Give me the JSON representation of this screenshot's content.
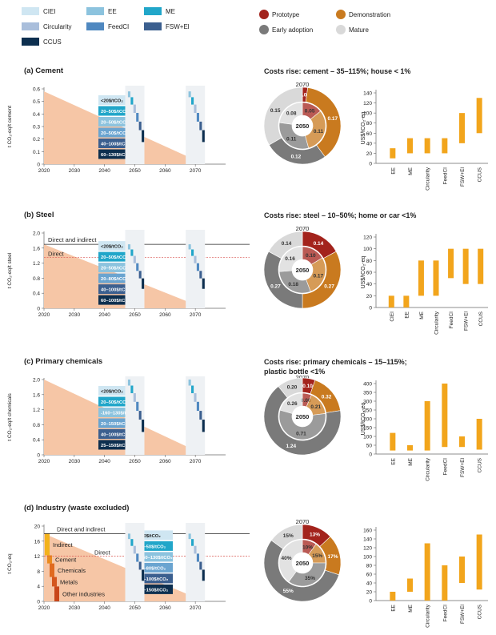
{
  "legend": {
    "items": [
      {
        "label": "CIEI",
        "color": "#cfe6f2"
      },
      {
        "label": "EE",
        "color": "#8cc3de"
      },
      {
        "label": "ME",
        "color": "#21a6c9"
      },
      {
        "label": "Circularity",
        "color": "#a9bedb"
      },
      {
        "label": "FeedCI",
        "color": "#4f88c0"
      },
      {
        "label": "FSW+El",
        "color": "#3b5f8f"
      },
      {
        "label": "CCUS",
        "color": "#0d2f4f"
      }
    ],
    "maturity": [
      {
        "label": "Prototype",
        "color": "#a3231c"
      },
      {
        "label": "Demonstration",
        "color": "#c97a1f"
      },
      {
        "label": "Early adoption",
        "color": "#7a7a7a"
      },
      {
        "label": "Mature",
        "color": "#d9d9d9"
      }
    ]
  },
  "bar_color": "#f2a51c",
  "chart_data": [
    {
      "id": "cement",
      "type": "area",
      "title": "(a) Cement",
      "ylabel": "t CO₂-eq/t cement",
      "yticks": [
        "0",
        "0.1",
        "0.2",
        "0.3",
        "0.4",
        "0.5",
        "0.6"
      ],
      "ylim": [
        0,
        0.6
      ],
      "xticks": [
        "2020",
        "2030",
        "2040",
        "2050",
        "2060",
        "2070"
      ],
      "ytop": 0.58,
      "cost_labels": [
        "<20$/tCO₂",
        "20–50$/tCO₂",
        "20–50$/tCO₂",
        "20–50$/tCO₂",
        "40–100$/tCO₂",
        "60–130$/tCO₂"
      ],
      "costs_title": "Costs rise: cement – 35–115%; house < 1%",
      "donut": {
        "year_outer": "2070",
        "year_inner": "2050",
        "outer": [
          0.01,
          0.17,
          0.12,
          0.15
        ],
        "outer_labels": [
          "0.01",
          "0.17",
          "0.12",
          "0.15"
        ],
        "inner": [
          0.05,
          0.11,
          0.11,
          0.08
        ],
        "inner_labels": [
          "0.05",
          "0.11",
          "0.11",
          "0.08"
        ]
      },
      "bars": {
        "ylabel": "US$/tCO₂-eq",
        "ymax": 140,
        "ytick_step": 20,
        "yticks": [
          "0",
          "20",
          "40",
          "60",
          "80",
          "100",
          "120",
          "140"
        ],
        "categories": [
          "EE",
          "ME",
          "Circularity",
          "FeedCI",
          "FSW+El",
          "CCUS"
        ],
        "ranges": [
          [
            10,
            30
          ],
          [
            20,
            50
          ],
          [
            20,
            50
          ],
          [
            20,
            50
          ],
          [
            40,
            100
          ],
          [
            60,
            130
          ]
        ]
      }
    },
    {
      "id": "steel",
      "type": "area",
      "title": "(b) Steel",
      "ylabel": "t CO₂-eq/t steel",
      "yticks": [
        "0",
        "0.4",
        "0.8",
        "1.2",
        "1.6",
        "2.0"
      ],
      "ylim": [
        0,
        2.0
      ],
      "xticks": [
        "2020",
        "2030",
        "2040",
        "2050",
        "2060",
        "2070"
      ],
      "ytop": 1.7,
      "annot_direct_indirect": "Direct and indirect",
      "annot_direct": "Direct",
      "direct_level": 1.35,
      "cost_labels": [
        "<20$/tCO₂",
        "20–50$/tCO₂",
        "20–50$/tCO₂",
        "20–80$/tCO₂",
        "40–100$/tCO₂",
        "60–100$/tCO₂"
      ],
      "costs_title": "Costs rise: steel – 10–50%; home or car <1%",
      "donut": {
        "year_outer": "2070",
        "year_inner": "2050",
        "outer": [
          0.14,
          0.27,
          0.27,
          0.14
        ],
        "outer_labels": [
          "0.14",
          "0.27",
          "0.27",
          "0.14"
        ],
        "inner": [
          0.1,
          0.17,
          0.18,
          0.16
        ],
        "inner_labels": [
          "0.10",
          "0.17",
          "0.18",
          "0.16"
        ]
      },
      "bars": {
        "ylabel": "US$/tCO₂-eq",
        "ymax": 120,
        "ytick_step": 20,
        "yticks": [
          "0",
          "20",
          "40",
          "60",
          "80",
          "100",
          "120"
        ],
        "categories": [
          "CIEI",
          "EE",
          "ME",
          "Circularity",
          "FeedCI",
          "FSW+El",
          "CCUS"
        ],
        "ranges": [
          [
            0,
            20
          ],
          [
            0,
            20
          ],
          [
            20,
            80
          ],
          [
            20,
            80
          ],
          [
            50,
            100
          ],
          [
            40,
            100
          ],
          [
            40,
            100
          ]
        ]
      }
    },
    {
      "id": "chemicals",
      "type": "area",
      "title": "(c) Primary chemicals",
      "ylabel": "t CO₂-eq/t chemicals",
      "yticks": [
        "0",
        "0.4",
        "0.8",
        "1.2",
        "1.6",
        "2.0"
      ],
      "ylim": [
        0,
        2.0
      ],
      "xticks": [
        "2020",
        "2030",
        "2040",
        "2050",
        "2060",
        "2070"
      ],
      "ytop": 2.0,
      "cost_labels": [
        "<20$/tCO₂",
        "20–50$/tCO₂",
        "-160–130$/tCO₂",
        "20–150$/tCO₂",
        "40–100$/tCO₂",
        "25–150$/tCO₂"
      ],
      "costs_title": "Costs rise: primary chemicals – 15–115%;",
      "costs_title2": "plastic bottle <1%",
      "donut": {
        "year_outer": "2070",
        "year_inner": "2050",
        "outer": [
          0.1,
          0.32,
          1.24,
          0.2
        ],
        "outer_labels": [
          "0.10",
          "0.32",
          "1.24",
          "0.20"
        ],
        "inner": [
          0.08,
          0.21,
          0.71,
          0.26
        ],
        "inner_labels": [
          "0.08",
          "0.21",
          "0.71",
          "0.26"
        ]
      },
      "bars": {
        "ylabel": "US$/tCO₂-eq",
        "ymax": 400,
        "ytick_step": 50,
        "yticks": [
          "0",
          "50",
          "100",
          "150",
          "200",
          "250",
          "300",
          "350",
          "400"
        ],
        "categories": [
          "EE",
          "ME",
          "Circularity",
          "FeedCI",
          "FSW+El",
          "CCUS"
        ],
        "ranges": [
          [
            20,
            120
          ],
          [
            20,
            50
          ],
          [
            20,
            300
          ],
          [
            40,
            400
          ],
          [
            40,
            100
          ],
          [
            25,
            200
          ]
        ]
      }
    },
    {
      "id": "industry",
      "type": "area",
      "title": "(d) Industry (waste excluded)",
      "ylabel": "t CO₂-eq",
      "yticks": [
        "0",
        "4",
        "8",
        "12",
        "16",
        "20"
      ],
      "ylim": [
        0,
        20
      ],
      "xticks": [
        "2020",
        "2030",
        "2040",
        "2050",
        "2060",
        "2070"
      ],
      "ytop": 18,
      "annot_direct_indirect": "Direct and indirect",
      "annot_direct": "Direct",
      "direct_level": 12,
      "stack_labels": [
        "Indirect",
        "Cement",
        "Chemicals",
        "Metals",
        "Other industries"
      ],
      "stack_colors": [
        "#f2b21c",
        "#e98a1e",
        "#e06a20",
        "#d4561e",
        "#c8461a"
      ],
      "cost_labels": [
        "<20$/tCO₂",
        "20–50$/tCO₂",
        "-160–130$/tCO₂",
        "20–80$/tCO₂",
        "40–100$/tCO₂",
        "25–150$/tCO₂"
      ],
      "donut": {
        "year_outer": "2070",
        "year_inner": "2050",
        "outer": [
          13,
          17,
          55,
          15
        ],
        "outer_labels": [
          "13%",
          "17%",
          "55%",
          "15%"
        ],
        "inner": [
          10,
          15,
          35,
          40
        ],
        "inner_labels": [
          "10%",
          "15%",
          "35%",
          "40%"
        ]
      },
      "bars": {
        "ylabel": "",
        "ymax": 160,
        "ytick_step": 20,
        "yticks": [
          "0",
          "20",
          "40",
          "60",
          "80",
          "100",
          "120",
          "140",
          "160"
        ],
        "categories": [
          "EE",
          "ME",
          "Circularity",
          "FeedCI",
          "FSW+El",
          "CCUS"
        ],
        "ranges": [
          [
            0,
            20
          ],
          [
            20,
            50
          ],
          [
            0,
            130
          ],
          [
            0,
            80
          ],
          [
            40,
            100
          ],
          [
            25,
            150
          ]
        ]
      }
    }
  ]
}
